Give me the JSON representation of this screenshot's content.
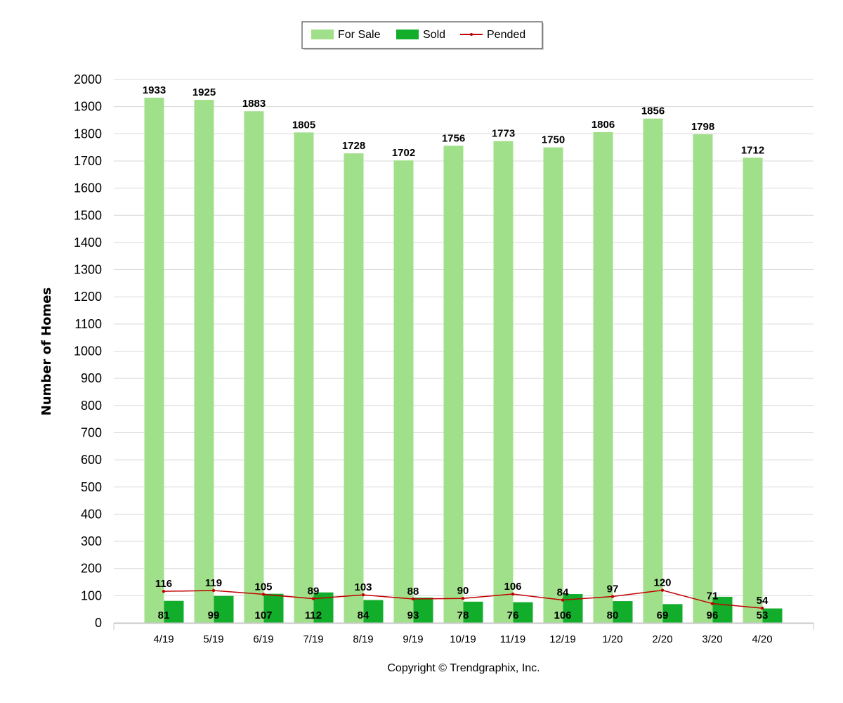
{
  "chart_data": {
    "type": "bar",
    "categories": [
      "4/19",
      "5/19",
      "6/19",
      "7/19",
      "8/19",
      "9/19",
      "10/19",
      "11/19",
      "12/19",
      "1/20",
      "2/20",
      "3/20",
      "4/20"
    ],
    "series": [
      {
        "name": "For Sale",
        "kind": "bar",
        "color": "#a1e08a",
        "values": [
          1933,
          1925,
          1883,
          1805,
          1728,
          1702,
          1756,
          1773,
          1750,
          1806,
          1856,
          1798,
          1712
        ]
      },
      {
        "name": "Sold",
        "kind": "bar",
        "color": "#12ad2b",
        "values": [
          81,
          99,
          107,
          112,
          84,
          93,
          78,
          76,
          106,
          80,
          69,
          96,
          53
        ]
      },
      {
        "name": "Pended",
        "kind": "line",
        "color": "#c00000",
        "values": [
          116,
          119,
          105,
          89,
          103,
          88,
          90,
          106,
          84,
          97,
          120,
          71,
          54
        ]
      }
    ],
    "ylabel": "Number of Homes",
    "ylim": [
      0,
      2000
    ],
    "yticks": [
      0,
      100,
      200,
      300,
      400,
      500,
      600,
      700,
      800,
      900,
      1000,
      1100,
      1200,
      1300,
      1400,
      1500,
      1600,
      1700,
      1800,
      1900,
      2000
    ],
    "grid": true,
    "legend": "top-center"
  },
  "footer": {
    "copyright": "Copyright © Trendgraphix, Inc."
  }
}
